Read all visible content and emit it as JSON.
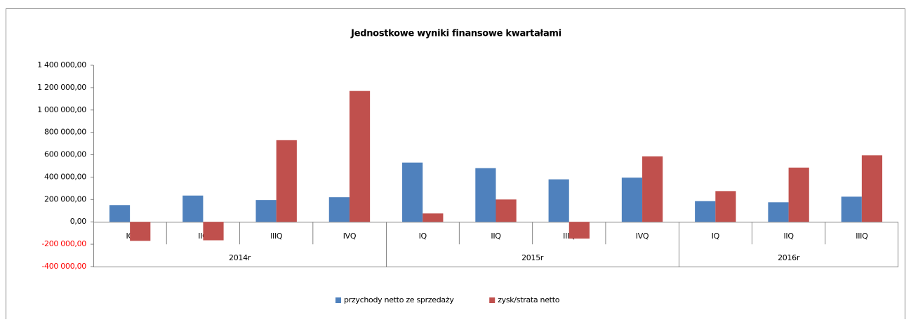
{
  "chart_data": {
    "type": "bar",
    "title": "Jednostkowe wyniki finansowe kwartałami",
    "category_groups": [
      {
        "name": "2014r",
        "categories": [
          "IQ",
          "IIQ",
          "IIIQ",
          "IVQ"
        ]
      },
      {
        "name": "2015r",
        "categories": [
          "IQ",
          "IIQ",
          "IIIQ",
          "IVQ"
        ]
      },
      {
        "name": "2016r",
        "categories": [
          "IQ",
          "IIQ",
          "IIIQ"
        ]
      }
    ],
    "series": [
      {
        "name": "przychody netto ze sprzedaży",
        "color": "#4f81bd",
        "values": [
          150000,
          235000,
          195000,
          220000,
          530000,
          480000,
          380000,
          395000,
          185000,
          175000,
          225000
        ]
      },
      {
        "name": "zysk/strata netto",
        "color": "#c0504d",
        "values": [
          -170000,
          -165000,
          730000,
          1170000,
          75000,
          200000,
          -150000,
          585000,
          275000,
          485000,
          595000
        ]
      }
    ],
    "ylim": [
      -400000,
      1400000
    ],
    "yticks": [
      {
        "value": -400000,
        "label": "-400 000,00"
      },
      {
        "value": -200000,
        "label": "-200 000,00"
      },
      {
        "value": 0,
        "label": "0,00"
      },
      {
        "value": 200000,
        "label": "200 000,00"
      },
      {
        "value": 400000,
        "label": "400 000,00"
      },
      {
        "value": 600000,
        "label": "600 000,00"
      },
      {
        "value": 800000,
        "label": "800 000,00"
      },
      {
        "value": 1000000,
        "label": "1 000 000,00"
      },
      {
        "value": 1200000,
        "label": "1 200 000,00"
      },
      {
        "value": 1400000,
        "label": "1 400 000,00"
      }
    ],
    "negative_tick_color": "#ff0000",
    "grid": false,
    "legend": "bottom"
  }
}
